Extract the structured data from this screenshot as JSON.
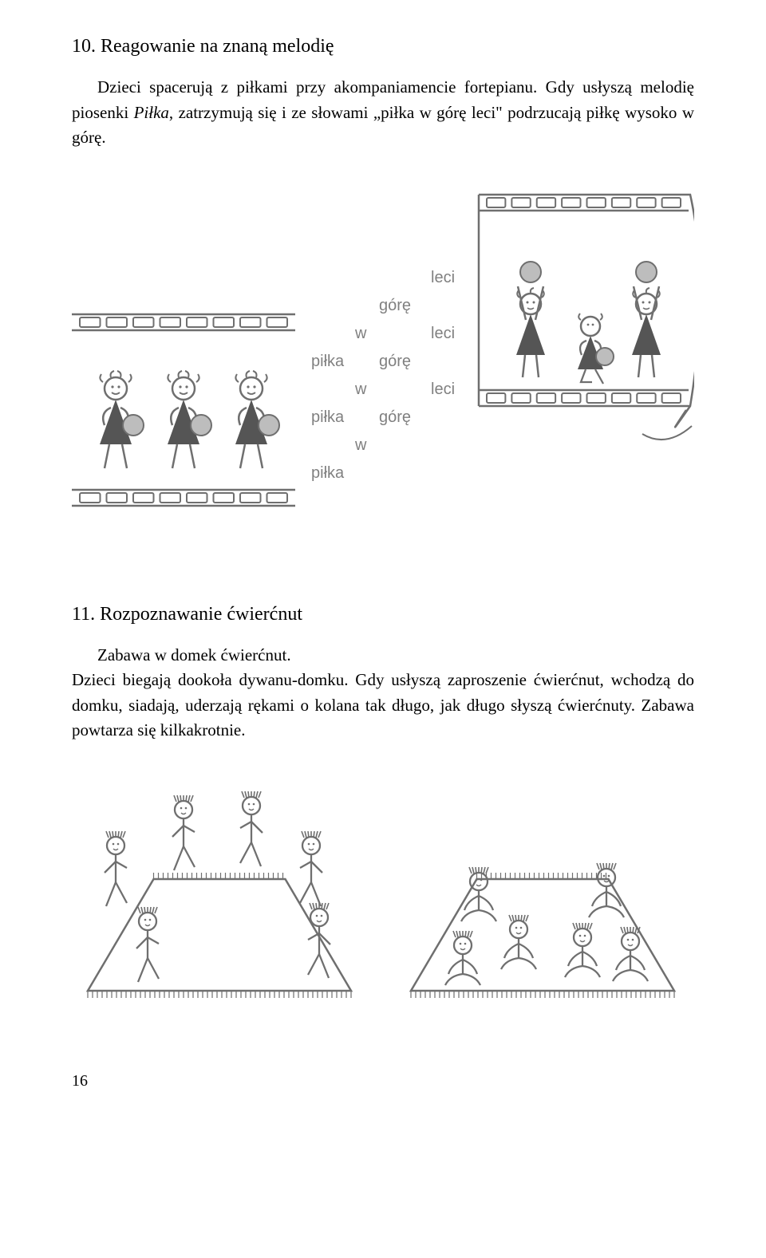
{
  "section10": {
    "heading": "10. Reagowanie na znaną melodię",
    "body_prefix": "Dzieci spacerują z piłkami przy akompaniamencie fortepianu. Gdy usłyszą melodię piosenki ",
    "body_italic": "Piłka",
    "body_suffix": ", zatrzymują się i ze słowami „piłka w górę leci\" podrzucają piłkę wysoko w górę."
  },
  "figure1": {
    "words": {
      "pilka": "piłka",
      "w": "w",
      "gore": "górę",
      "leci": "leci"
    },
    "colors": {
      "stroke": "#6f6f6f",
      "text": "#808080",
      "figure_fill": "#555555",
      "light_fill": "#bdbdbd",
      "bg": "#ffffff"
    },
    "font_family": "Arial, sans-serif",
    "font_size": 20
  },
  "section11": {
    "heading": "11. Rozpoznawanie ćwierćnut",
    "body_line1": "Zabawa w domek ćwierćnut.",
    "body_rest": "Dzieci biegają dookoła dywanu-domku. Gdy usłyszą zaproszenie ćwierćnut, wchodzą do domku, siadają, uderzają rękami o kolana tak długo, jak długo słyszą ćwierćnuty. Zabawa powtarza się kilkakrotnie."
  },
  "figure2": {
    "colors": {
      "stroke": "#6f6f6f",
      "rug_fill": "#d8d8d8",
      "bg": "#ffffff"
    }
  },
  "page_number": "16"
}
